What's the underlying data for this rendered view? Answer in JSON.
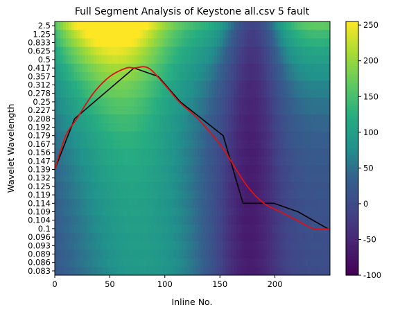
{
  "chart_data": {
    "type": "heatmap",
    "title": "Full Segment Analysis of Keystone all.csv 5 fault",
    "xlabel": "Inline No.",
    "ylabel": "Wavelet Wavelength",
    "xlim": [
      0,
      250
    ],
    "x_ticks": [
      0,
      50,
      100,
      150,
      200
    ],
    "y_tick_labels": [
      "2.5",
      "1.25",
      "0.833",
      "0.625",
      "0.5",
      "0.417",
      "0.357",
      "0.312",
      "0.278",
      "0.25",
      "0.227",
      "0.208",
      "0.192",
      "0.179",
      "0.167",
      "0.156",
      "0.147",
      "0.139",
      "0.132",
      "0.125",
      "0.119",
      "0.114",
      "0.109",
      "0.104",
      "0.1",
      "0.096",
      "0.093",
      "0.089",
      "0.086",
      "0.083"
    ],
    "colorbar": {
      "colormap": "viridis",
      "range": [
        -100,
        255
      ],
      "ticks": [
        -100,
        -50,
        0,
        50,
        100,
        150,
        200,
        250
      ]
    },
    "series": [
      {
        "color": "#000000",
        "points": [
          [
            0,
            0.139
          ],
          [
            18,
            0.208
          ],
          [
            72,
            0.417
          ],
          [
            94,
            0.357
          ],
          [
            114,
            0.25
          ],
          [
            153,
            0.179
          ],
          [
            171,
            0.114
          ],
          [
            199,
            0.114
          ],
          [
            221,
            0.109
          ],
          [
            248,
            0.1
          ]
        ]
      },
      {
        "color": "#dd1111",
        "points": [
          [
            0,
            0.139
          ],
          [
            10,
            0.179
          ],
          [
            20,
            0.208
          ],
          [
            35,
            0.278
          ],
          [
            50,
            0.357
          ],
          [
            65,
            0.417
          ],
          [
            72,
            0.417
          ],
          [
            85,
            0.417
          ],
          [
            100,
            0.312
          ],
          [
            113,
            0.25
          ],
          [
            130,
            0.208
          ],
          [
            150,
            0.167
          ],
          [
            160,
            0.147
          ],
          [
            175,
            0.125
          ],
          [
            190,
            0.114
          ],
          [
            205,
            0.109
          ],
          [
            220,
            0.104
          ],
          [
            235,
            0.1
          ],
          [
            250,
            0.1
          ]
        ]
      }
    ]
  }
}
